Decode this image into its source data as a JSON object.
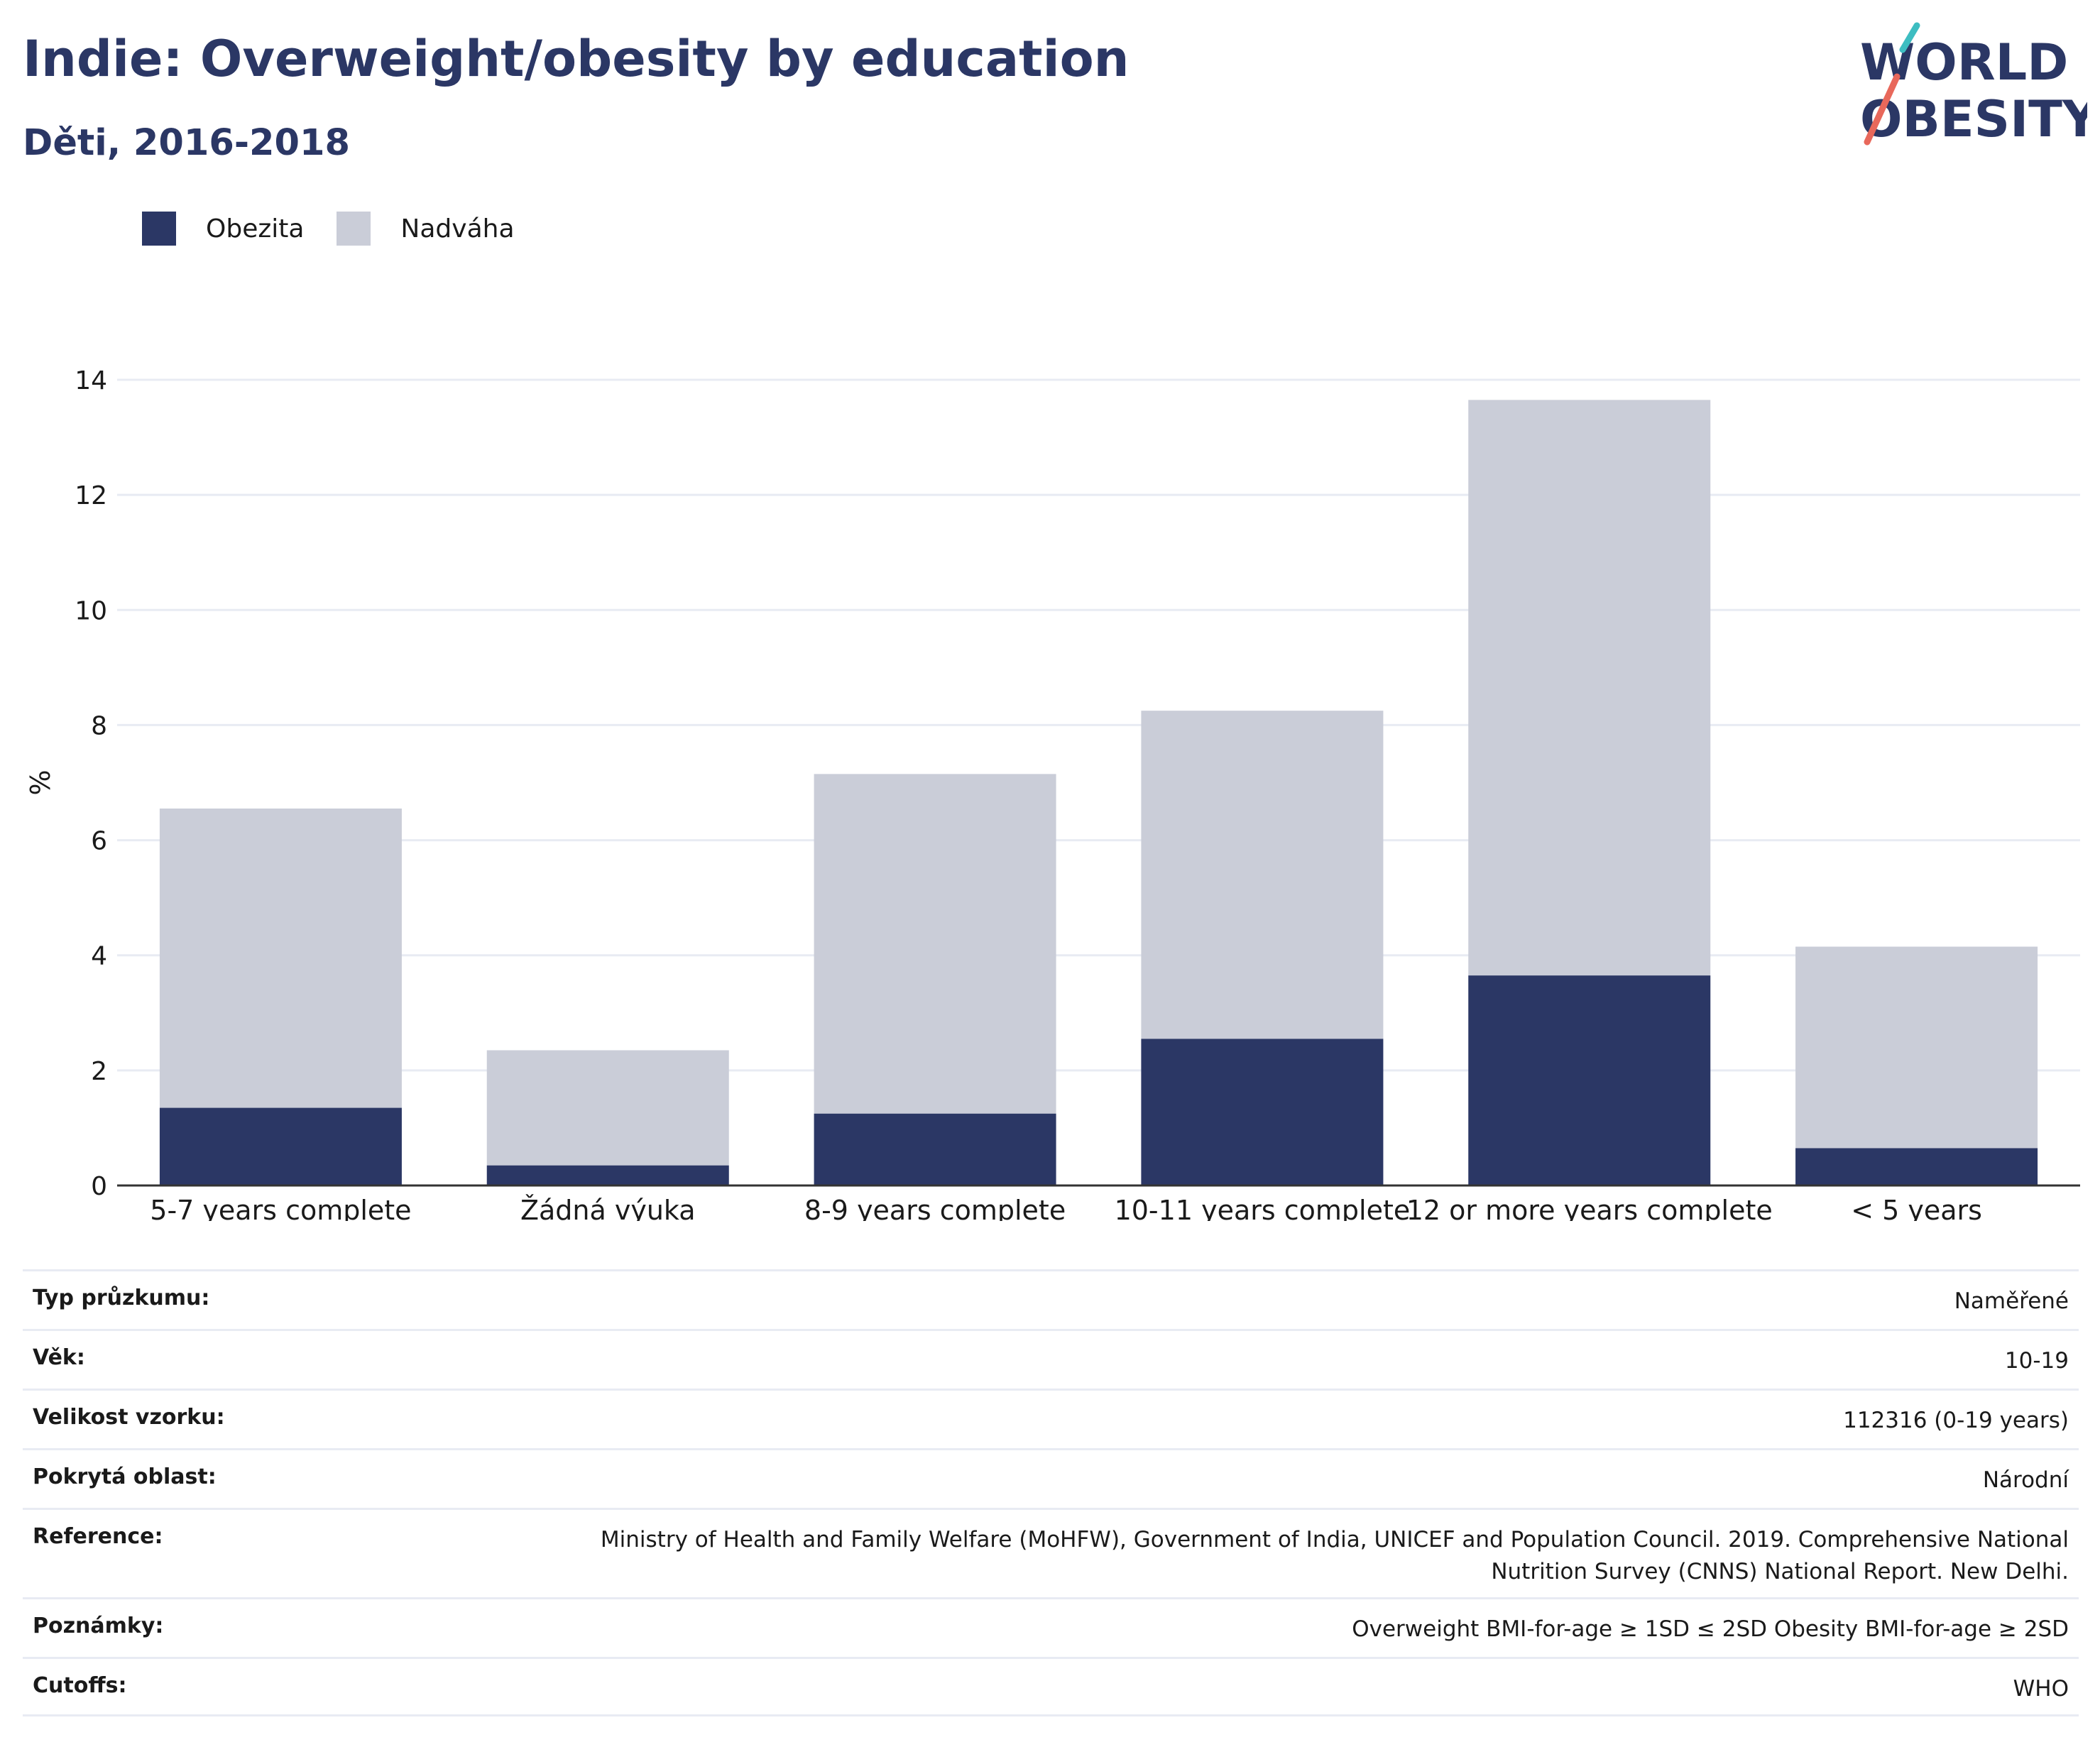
{
  "header": {
    "title": "Indie: Overweight/obesity by education",
    "subtitle": "Děti, 2016-2018"
  },
  "logo": {
    "line1": "WORLD",
    "line2": "OBESITY",
    "colors": {
      "text": "#2b3765",
      "slash_top": "#3dbdc1",
      "slash_bottom": "#e8685b"
    }
  },
  "colors": {
    "obesity": "#2b3765",
    "overweight": "#cacdd8",
    "grid": "#e8ebf3",
    "axis": "#333333"
  },
  "chart_data": {
    "type": "bar",
    "stacked": true,
    "categories": [
      "5-7 years complete",
      "Žádná výuka",
      "8-9 years complete",
      "10-11 years complete",
      "12 or more years complete",
      "< 5 years"
    ],
    "series": [
      {
        "name": "Obezita",
        "values": [
          1.35,
          0.35,
          1.25,
          2.55,
          3.65,
          0.65
        ]
      },
      {
        "name": "Nadváha",
        "values": [
          5.2,
          2.0,
          5.9,
          5.7,
          10.0,
          3.5
        ]
      }
    ],
    "ylabel": "%",
    "ylim": [
      0,
      14
    ],
    "yticks": [
      0,
      2,
      4,
      6,
      8,
      10,
      12,
      14
    ],
    "grid": true,
    "legend_position": "top-left"
  },
  "info": [
    {
      "label": "Typ průzkumu:",
      "value": "Naměřené"
    },
    {
      "label": "Věk:",
      "value": "10-19"
    },
    {
      "label": "Velikost vzorku:",
      "value": "112316 (0-19 years)"
    },
    {
      "label": "Pokrytá oblast:",
      "value": "Národní"
    },
    {
      "label": "Reference:",
      "value": "Ministry of Health and Family Welfare (MoHFW), Government of India, UNICEF and Population Council. 2019. Comprehensive National Nutrition Survey (CNNS) National Report. New Delhi."
    },
    {
      "label": "Poznámky:",
      "value": "Overweight BMI-for-age ≥ 1SD ≤ 2SD Obesity BMI-for-age ≥ 2SD"
    },
    {
      "label": "Cutoffs:",
      "value": "WHO"
    }
  ]
}
